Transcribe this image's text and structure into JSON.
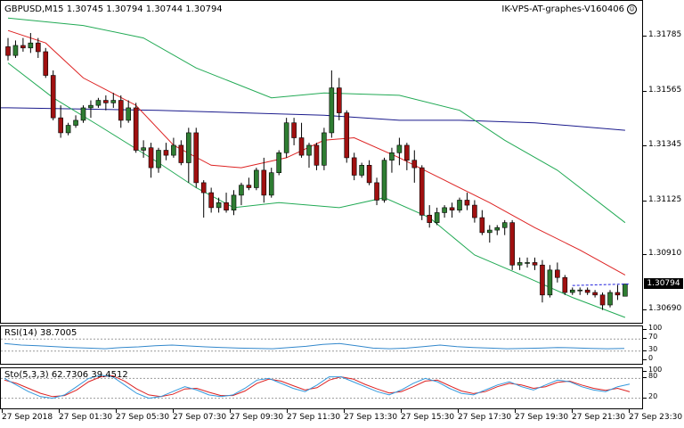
{
  "header": {
    "symbol_info": "GBPUSD,M15  1.30745 1.30794 1.30744 1.30794",
    "chart_name": "IK-VPS-AT-graphes-V160406",
    "smiley_icon": "smiley-face-icon"
  },
  "price_axis": {
    "ticks": [
      "1.31785",
      "1.31565",
      "1.31345",
      "1.31125",
      "1.30910",
      "1.30690"
    ]
  },
  "current_price": "1.30794",
  "rsi": {
    "label": "RSI(14) 38.7005",
    "ticks": [
      "100",
      "70",
      "30",
      "0"
    ]
  },
  "stochastic": {
    "label": "Sto(5,3,3) 62.7306 39.4512",
    "ticks": [
      "100",
      "80",
      "20"
    ]
  },
  "time_axis": {
    "labels": [
      "27 Sep 2018",
      "27 Sep 01:30",
      "27 Sep 05:30",
      "27 Sep 07:30",
      "27 Sep 09:30",
      "27 Sep 11:30",
      "27 Sep 13:30",
      "27 Sep 15:30",
      "27 Sep 17:30",
      "27 Sep 19:30",
      "27 Sep 21:30",
      "27 Sep 23:30"
    ]
  },
  "colors": {
    "bull": "#2e7d32",
    "bear": "#a01010",
    "bands": "#22aa55",
    "ma_fast": "#dd2222",
    "ma_slow": "#1a1a8c",
    "rsi_line": "#3388cc",
    "sto_main": "#3399dd",
    "sto_signal": "#dd2222",
    "ask_line": "#2020dd"
  },
  "chart_data": {
    "type": "candlestick",
    "price_range": [
      1.3066,
      1.3185
    ],
    "candles": [
      [
        1.31745,
        1.3178,
        1.3169,
        1.3171
      ],
      [
        1.3171,
        1.3177,
        1.317,
        1.3175
      ],
      [
        1.3175,
        1.3178,
        1.31725,
        1.3174
      ],
      [
        1.3174,
        1.318,
        1.3172,
        1.3176
      ],
      [
        1.3176,
        1.3178,
        1.317,
        1.31725
      ],
      [
        1.31725,
        1.3174,
        1.3162,
        1.3163
      ],
      [
        1.3163,
        1.3165,
        1.3145,
        1.3146
      ],
      [
        1.3146,
        1.3151,
        1.3138,
        1.314
      ],
      [
        1.314,
        1.3144,
        1.3139,
        1.3143
      ],
      [
        1.3143,
        1.3147,
        1.3142,
        1.3145
      ],
      [
        1.3145,
        1.3151,
        1.3144,
        1.315
      ],
      [
        1.315,
        1.3153,
        1.3146,
        1.3151
      ],
      [
        1.3151,
        1.3154,
        1.315,
        1.3153
      ],
      [
        1.3153,
        1.3155,
        1.3149,
        1.3152
      ],
      [
        1.3152,
        1.3156,
        1.315,
        1.3153
      ],
      [
        1.3153,
        1.3155,
        1.3142,
        1.3145
      ],
      [
        1.3145,
        1.3153,
        1.3144,
        1.315
      ],
      [
        1.315,
        1.3152,
        1.3132,
        1.3133
      ],
      [
        1.3133,
        1.3137,
        1.313,
        1.3134
      ],
      [
        1.3134,
        1.3136,
        1.3122,
        1.3126
      ],
      [
        1.3126,
        1.3134,
        1.3124,
        1.3133
      ],
      [
        1.3133,
        1.3136,
        1.3129,
        1.3131
      ],
      [
        1.3131,
        1.3138,
        1.313,
        1.3135
      ],
      [
        1.3135,
        1.3137,
        1.3127,
        1.3128
      ],
      [
        1.3128,
        1.3142,
        1.312,
        1.314
      ],
      [
        1.314,
        1.3142,
        1.3118,
        1.312
      ],
      [
        1.312,
        1.3121,
        1.3106,
        1.3116
      ],
      [
        1.3116,
        1.3118,
        1.3108,
        1.311
      ],
      [
        1.311,
        1.3114,
        1.3108,
        1.3112
      ],
      [
        1.3112,
        1.3116,
        1.3108,
        1.3109
      ],
      [
        1.3109,
        1.3117,
        1.3107,
        1.3115
      ],
      [
        1.3115,
        1.312,
        1.3111,
        1.3119
      ],
      [
        1.3119,
        1.3122,
        1.3117,
        1.3118
      ],
      [
        1.3118,
        1.3126,
        1.3117,
        1.3125
      ],
      [
        1.3125,
        1.313,
        1.3112,
        1.3115
      ],
      [
        1.3115,
        1.3126,
        1.3114,
        1.3124
      ],
      [
        1.3124,
        1.3133,
        1.3123,
        1.3132
      ],
      [
        1.3132,
        1.3146,
        1.313,
        1.3144
      ],
      [
        1.3144,
        1.3146,
        1.3135,
        1.3138
      ],
      [
        1.3138,
        1.3144,
        1.313,
        1.3131
      ],
      [
        1.3131,
        1.3136,
        1.3126,
        1.3135
      ],
      [
        1.3135,
        1.3136,
        1.3125,
        1.3127
      ],
      [
        1.3127,
        1.3142,
        1.3125,
        1.314
      ],
      [
        1.314,
        1.3165,
        1.3138,
        1.3158
      ],
      [
        1.3158,
        1.3162,
        1.3145,
        1.3148
      ],
      [
        1.3148,
        1.3149,
        1.3128,
        1.313
      ],
      [
        1.313,
        1.3132,
        1.3121,
        1.3123
      ],
      [
        1.3123,
        1.3128,
        1.3122,
        1.3127
      ],
      [
        1.3127,
        1.3129,
        1.3119,
        1.312
      ],
      [
        1.312,
        1.3122,
        1.3111,
        1.3113
      ],
      [
        1.3113,
        1.313,
        1.3112,
        1.3129
      ],
      [
        1.3129,
        1.3134,
        1.3124,
        1.3132
      ],
      [
        1.3132,
        1.3138,
        1.3127,
        1.3135
      ],
      [
        1.3135,
        1.3136,
        1.3125,
        1.3129
      ],
      [
        1.3129,
        1.3133,
        1.312,
        1.3126
      ],
      [
        1.3126,
        1.3127,
        1.3105,
        1.3107
      ],
      [
        1.3107,
        1.3111,
        1.3102,
        1.3104
      ],
      [
        1.3104,
        1.311,
        1.3103,
        1.3108
      ],
      [
        1.3108,
        1.3111,
        1.3106,
        1.311
      ],
      [
        1.311,
        1.3112,
        1.3106,
        1.3109
      ],
      [
        1.3109,
        1.3114,
        1.3108,
        1.3113
      ],
      [
        1.3113,
        1.3116,
        1.3109,
        1.3111
      ],
      [
        1.3111,
        1.3113,
        1.3104,
        1.3106
      ],
      [
        1.3106,
        1.3109,
        1.3099,
        1.31
      ],
      [
        1.31,
        1.3103,
        1.3096,
        1.3101
      ],
      [
        1.3101,
        1.3103,
        1.3099,
        1.3102
      ],
      [
        1.3102,
        1.3105,
        1.3099,
        1.3104
      ],
      [
        1.3104,
        1.3105,
        1.3085,
        1.3087
      ],
      [
        1.3087,
        1.309,
        1.3085,
        1.3088
      ],
      [
        1.3088,
        1.309,
        1.3086,
        1.3088
      ],
      [
        1.3088,
        1.309,
        1.3085,
        1.3087
      ],
      [
        1.3087,
        1.3089,
        1.3072,
        1.3075
      ],
      [
        1.3075,
        1.3087,
        1.3074,
        1.3085
      ],
      [
        1.3085,
        1.3088,
        1.308,
        1.3082
      ],
      [
        1.3082,
        1.3083,
        1.3075,
        1.3076
      ],
      [
        1.3076,
        1.3078,
        1.3075,
        1.3077
      ],
      [
        1.3077,
        1.3078,
        1.3075,
        1.3077
      ],
      [
        1.3077,
        1.3078,
        1.3075,
        1.3076
      ],
      [
        1.3076,
        1.3077,
        1.3074,
        1.3075
      ],
      [
        1.3075,
        1.3076,
        1.3069,
        1.3071
      ],
      [
        1.3071,
        1.3077,
        1.307,
        1.3076
      ],
      [
        1.3076,
        1.3079,
        1.3073,
        1.3075
      ],
      [
        1.30745,
        1.30794,
        1.30744,
        1.30794
      ]
    ],
    "bollinger_upper": [
      [
        0,
        1.3186
      ],
      [
        10,
        1.3183
      ],
      [
        18,
        1.3178
      ],
      [
        25,
        1.3166
      ],
      [
        35,
        1.3154
      ],
      [
        42,
        1.3156
      ],
      [
        52,
        1.3155
      ],
      [
        60,
        1.3149
      ],
      [
        66,
        1.3137
      ],
      [
        73,
        1.3125
      ],
      [
        82,
        1.3104
      ]
    ],
    "bollinger_lower": [
      [
        0,
        1.3168
      ],
      [
        6,
        1.3154
      ],
      [
        12,
        1.3143
      ],
      [
        20,
        1.3128
      ],
      [
        25,
        1.3118
      ],
      [
        30,
        1.311
      ],
      [
        36,
        1.3112
      ],
      [
        44,
        1.311
      ],
      [
        50,
        1.3114
      ],
      [
        56,
        1.3106
      ],
      [
        62,
        1.3091
      ],
      [
        69,
        1.3082
      ],
      [
        75,
        1.3074
      ],
      [
        82,
        1.3066
      ]
    ],
    "ma_fast": [
      [
        0,
        1.3181
      ],
      [
        5,
        1.3176
      ],
      [
        10,
        1.3162
      ],
      [
        17,
        1.3151
      ],
      [
        22,
        1.3135
      ],
      [
        27,
        1.3127
      ],
      [
        31,
        1.3126
      ],
      [
        37,
        1.313
      ],
      [
        42,
        1.3137
      ],
      [
        46,
        1.3138
      ],
      [
        52,
        1.313
      ],
      [
        58,
        1.3121
      ],
      [
        64,
        1.3112
      ],
      [
        70,
        1.3102
      ],
      [
        76,
        1.3093
      ],
      [
        82,
        1.3083
      ]
    ],
    "ma_slow": [
      [
        0,
        1.315
      ],
      [
        20,
        1.3149
      ],
      [
        42,
        1.3147
      ],
      [
        52,
        1.3145
      ],
      [
        60,
        1.3145
      ],
      [
        70,
        1.3144
      ],
      [
        82,
        1.3141
      ]
    ],
    "rsi_values": [
      55,
      50,
      48,
      45,
      42,
      40,
      38,
      42,
      44,
      48,
      50,
      47,
      44,
      42,
      40,
      39,
      38,
      42,
      46,
      52,
      55,
      48,
      40,
      38,
      40,
      45,
      50,
      45,
      42,
      40,
      38,
      39,
      40,
      42,
      41,
      39,
      38,
      38.7
    ],
    "sto_main": [
      80,
      60,
      40,
      25,
      20,
      30,
      55,
      80,
      90,
      85,
      60,
      35,
      20,
      25,
      40,
      55,
      45,
      30,
      25,
      30,
      50,
      75,
      80,
      65,
      50,
      40,
      60,
      85,
      85,
      70,
      55,
      40,
      30,
      45,
      65,
      80,
      70,
      50,
      35,
      30,
      45,
      60,
      70,
      55,
      45,
      60,
      75,
      70,
      55,
      45,
      40,
      55,
      62.7
    ],
    "sto_signal": [
      75,
      65,
      50,
      35,
      25,
      28,
      45,
      70,
      85,
      88,
      72,
      48,
      30,
      25,
      32,
      48,
      50,
      38,
      28,
      28,
      42,
      65,
      78,
      72,
      58,
      45,
      52,
      75,
      85,
      78,
      62,
      48,
      36,
      40,
      55,
      72,
      75,
      58,
      42,
      34,
      40,
      55,
      65,
      60,
      50,
      55,
      68,
      72,
      60,
      50,
      44,
      50,
      39.5
    ],
    "current_price": 1.30794
  }
}
